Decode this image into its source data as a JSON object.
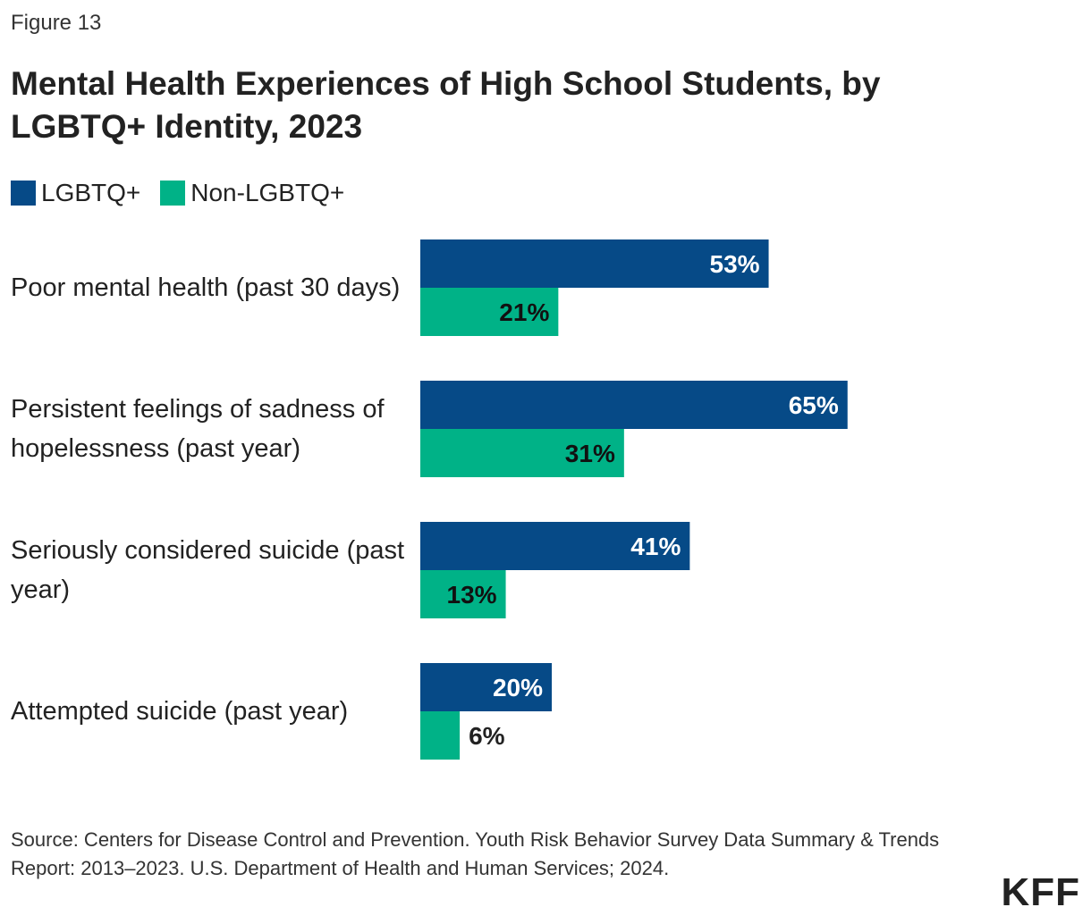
{
  "figure_label": "Figure 13",
  "title": "Mental Health Experiences of High School Students, by LGBTQ+ Identity, 2023",
  "source": "Source: Centers for Disease Control and Prevention. Youth Risk Behavior Survey Data Summary & Trends Report: 2013–2023. U.S. Department of Health and Human Services; 2024.",
  "logo": "KFF",
  "colors": {
    "lgbtq": "#064A87",
    "non_lgbtq": "#00B287"
  },
  "chart_data": {
    "type": "bar",
    "orientation": "horizontal",
    "title": "Mental Health Experiences of High School Students, by LGBTQ+ Identity, 2023",
    "categories": [
      "Poor mental health (past 30 days)",
      "Persistent feelings of sadness of hopelessness (past year)",
      "Seriously considered suicide (past year)",
      "Attempted suicide (past year)"
    ],
    "series": [
      {
        "name": "LGBTQ+",
        "values": [
          53,
          65,
          41,
          20
        ],
        "labels": [
          "53%",
          "65%",
          "41%",
          "20%"
        ]
      },
      {
        "name": "Non-LGBTQ+",
        "values": [
          21,
          31,
          13,
          6
        ],
        "labels": [
          "21%",
          "31%",
          "13%",
          "6%"
        ]
      }
    ],
    "xlim": [
      0,
      100
    ],
    "legend": "top-left",
    "grid": false
  }
}
